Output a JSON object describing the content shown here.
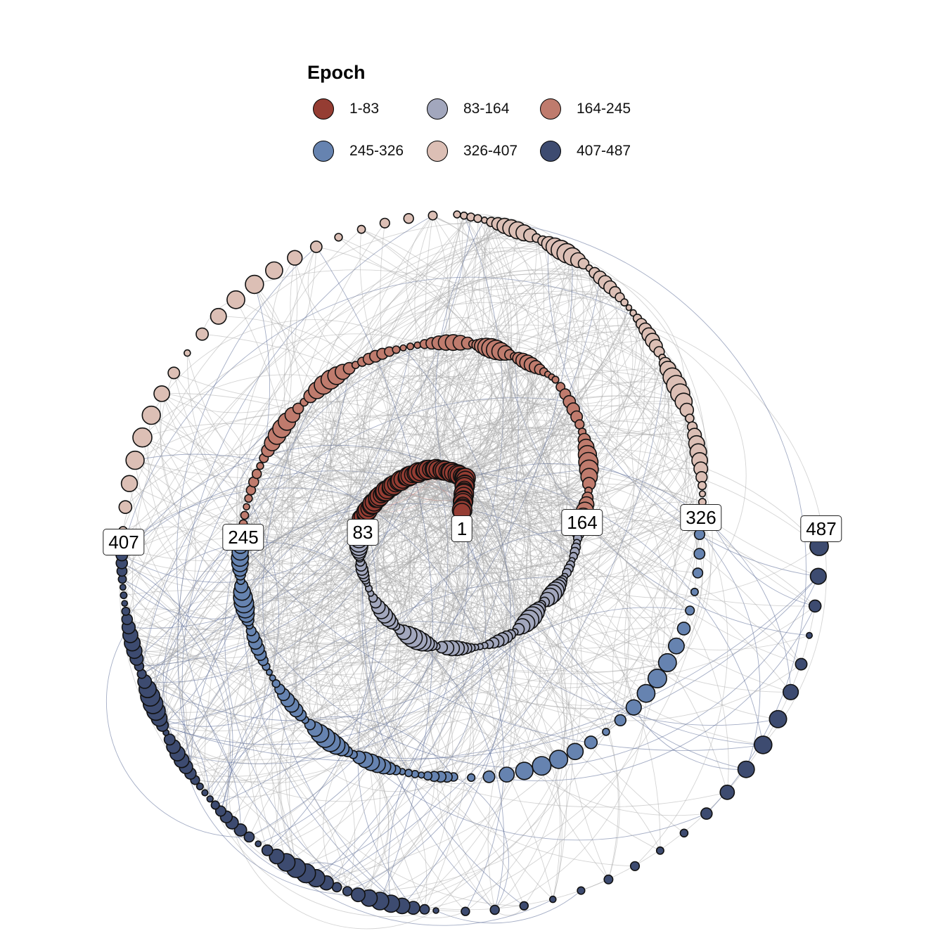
{
  "legend": {
    "title": "Epoch",
    "items": [
      {
        "label": "1-83",
        "color": "#953d33"
      },
      {
        "label": "83-164",
        "color": "#a2a7bd"
      },
      {
        "label": "164-245",
        "color": "#bf7b6d"
      },
      {
        "label": "245-326",
        "color": "#6683b0"
      },
      {
        "label": "326-407",
        "color": "#dcbfb5"
      },
      {
        "label": "407-487",
        "color": "#3d4b70"
      }
    ]
  },
  "labels": {
    "l1": "1",
    "l83": "83",
    "l164": "164",
    "l245": "245",
    "l326": "326",
    "l407": "407",
    "l487": "487"
  },
  "chart_data": {
    "type": "network",
    "layout": "spiral",
    "node_count": 487,
    "color_by": "Epoch",
    "epochs": [
      "1-83",
      "83-164",
      "164-245",
      "245-326",
      "326-407",
      "407-487"
    ],
    "labeled_nodes": [
      1,
      83,
      164,
      245,
      326,
      407,
      487
    ],
    "edge_color": "#a9a9a9"
  }
}
